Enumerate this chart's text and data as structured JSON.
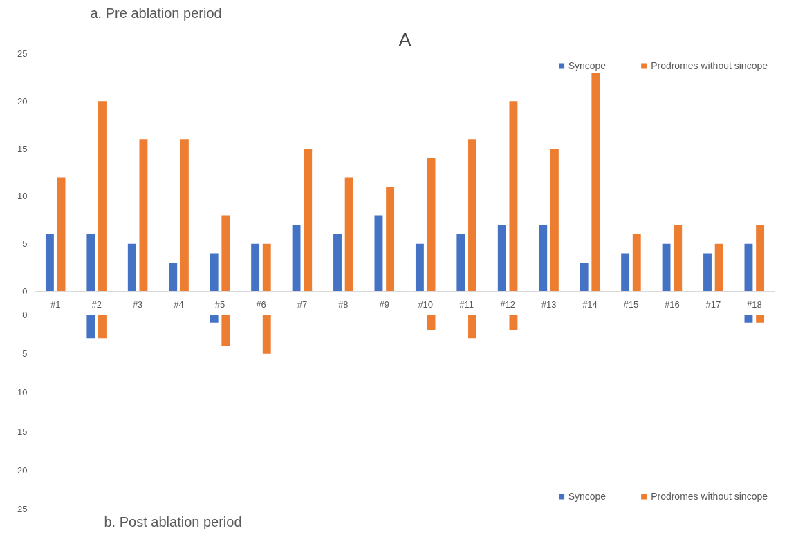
{
  "chart_data": [
    {
      "type": "bar",
      "title": "A",
      "subtitle": "a. Pre ablation period",
      "categories": [
        "#1",
        "#2",
        "#3",
        "#4",
        "#5",
        "#6",
        "#7",
        "#8",
        "#9",
        "#10",
        "#11",
        "#12",
        "#13",
        "#14",
        "#15",
        "#16",
        "#17",
        "#18"
      ],
      "series": [
        {
          "name": "Syncope",
          "color": "#4472c4",
          "values": [
            6,
            6,
            5,
            3,
            4,
            5,
            7,
            6,
            8,
            5,
            6,
            7,
            7,
            3,
            4,
            5,
            4,
            5
          ]
        },
        {
          "name": "Prodromes without sincope",
          "color": "#ed7d31",
          "values": [
            12,
            20,
            16,
            16,
            8,
            5,
            15,
            12,
            11,
            14,
            16,
            20,
            15,
            23,
            6,
            7,
            5,
            7
          ]
        }
      ],
      "ylim": [
        0,
        25
      ],
      "yticks": [
        0,
        5,
        10,
        15,
        20,
        25
      ],
      "grid": false,
      "legend": "top right"
    },
    {
      "type": "bar",
      "title": "b. Post ablation period",
      "categories": [
        null,
        null,
        null,
        null,
        null,
        null,
        null,
        null,
        null,
        null,
        null,
        null,
        null,
        null,
        null,
        null,
        null,
        null
      ],
      "series": [
        {
          "name": "Syncope",
          "color": "#4472c4",
          "values": [
            0,
            3,
            0,
            0,
            1,
            0,
            0,
            0,
            0,
            0,
            0,
            0,
            0,
            0,
            0,
            0,
            0,
            1
          ]
        },
        {
          "name": "Prodromes without sincope",
          "color": "#ed7d31",
          "values": [
            0,
            3,
            0,
            0,
            4,
            5,
            0,
            0,
            0,
            2,
            3,
            2,
            0,
            0,
            0,
            0,
            0,
            1
          ]
        }
      ],
      "ylim": [
        25,
        0
      ],
      "yticks": [
        0,
        5,
        10,
        15,
        20,
        25
      ],
      "grid": false,
      "legend": "bottom right",
      "tick_labels": "y"
    }
  ]
}
